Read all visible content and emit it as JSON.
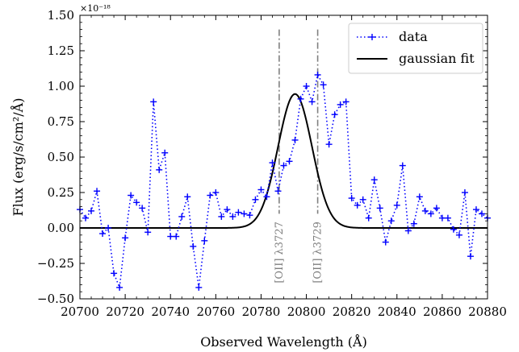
{
  "colors": {
    "data_series": "#0000ff",
    "fit_line": "#000000",
    "annotation_line": "#808080",
    "annotation_text": "#7f7f7f"
  },
  "chart_data": {
    "type": "line",
    "title": "",
    "xlabel": "Observed Wavelength (Å)",
    "ylabel": "Flux (erg/s/cm²/Å)",
    "y_multiplier": "×10⁻¹⁸",
    "xlim": [
      20700,
      20880
    ],
    "ylim": [
      -0.5,
      1.5
    ],
    "xticks": [
      20700,
      20720,
      20740,
      20760,
      20780,
      20800,
      20820,
      20840,
      20860,
      20880
    ],
    "yticks": [
      -0.5,
      -0.25,
      0.0,
      0.25,
      0.5,
      0.75,
      1.0,
      1.25,
      1.5
    ],
    "xtick_labels": [
      "20700",
      "20720",
      "20740",
      "20760",
      "20780",
      "20800",
      "20820",
      "20840",
      "20860",
      "20880"
    ],
    "ytick_labels": [
      "−0.50",
      "−0.25",
      "0.00",
      "0.25",
      "0.50",
      "0.75",
      "1.00",
      "1.25",
      "1.50"
    ],
    "grid": false,
    "legend_position": "top-right",
    "series": [
      {
        "name": "data",
        "style": "dotted-plus-markers",
        "x": [
          20700,
          20702.5,
          20705,
          20707.5,
          20710,
          20712.5,
          20715,
          20717.5,
          20720,
          20722.5,
          20725,
          20727.5,
          20730,
          20732.5,
          20735,
          20737.5,
          20740,
          20742.5,
          20745,
          20747.5,
          20750,
          20752.5,
          20755,
          20757.5,
          20760,
          20762.5,
          20765,
          20767.5,
          20770,
          20772.5,
          20775,
          20777.5,
          20780,
          20782.5,
          20785,
          20787.5,
          20790,
          20792.5,
          20795,
          20797.5,
          20800,
          20802.5,
          20805,
          20807.5,
          20810,
          20812.5,
          20815,
          20817.5,
          20820,
          20822.5,
          20825,
          20827.5,
          20830,
          20832.5,
          20835,
          20837.5,
          20840,
          20842.5,
          20845,
          20847.5,
          20850,
          20852.5,
          20855,
          20857.5,
          20860,
          20862.5,
          20865,
          20867.5,
          20870,
          20872.5,
          20875,
          20877.5,
          20880
        ],
        "y": [
          0.13,
          0.07,
          0.12,
          0.26,
          -0.04,
          0.0,
          -0.32,
          -0.42,
          -0.07,
          0.23,
          0.18,
          0.14,
          -0.03,
          0.89,
          0.41,
          0.53,
          -0.06,
          -0.06,
          0.08,
          0.22,
          -0.13,
          -0.42,
          -0.09,
          0.23,
          0.25,
          0.08,
          0.13,
          0.08,
          0.11,
          0.1,
          0.09,
          0.2,
          0.27,
          0.22,
          0.46,
          0.26,
          0.44,
          0.47,
          0.62,
          0.91,
          1.0,
          0.89,
          1.08,
          1.01,
          0.59,
          0.8,
          0.87,
          0.89,
          0.21,
          0.16,
          0.2,
          0.07,
          0.34,
          0.14,
          -0.1,
          0.05,
          0.16,
          0.44,
          -0.02,
          0.03,
          0.22,
          0.12,
          0.1,
          0.14,
          0.07,
          0.07,
          -0.01,
          -0.05,
          0.25,
          -0.2,
          0.13,
          0.1,
          0.07
        ]
      },
      {
        "name": "gaussian fit",
        "style": "solid",
        "model": "gaussian",
        "amplitude": 0.945,
        "center": 20795.0,
        "sigma": 7.5,
        "baseline": 0.0
      }
    ],
    "annotations": [
      {
        "label": "[OII] λ3727",
        "x": 20788.0,
        "y_top": 1.4,
        "y_bottom": 0.1
      },
      {
        "label": "[OII] λ3729",
        "x": 20805.0,
        "y_top": 1.4,
        "y_bottom": 0.1
      }
    ]
  }
}
